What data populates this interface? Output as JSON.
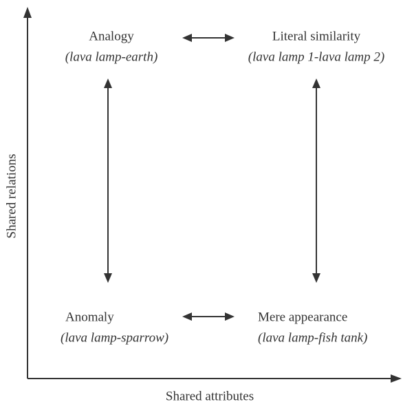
{
  "axes": {
    "x_label": "Shared attributes",
    "y_label": "Shared relations"
  },
  "quadrants": [
    {
      "label": "Analogy",
      "example": "(lava lamp-earth)"
    },
    {
      "label": "Literal similarity",
      "example": "(lava lamp 1-lava lamp 2)"
    },
    {
      "label": "Anomaly",
      "example": "(lava lamp-sparrow)"
    },
    {
      "label": "Mere appearance",
      "example": "(lava lamp-fish tank)"
    }
  ]
}
